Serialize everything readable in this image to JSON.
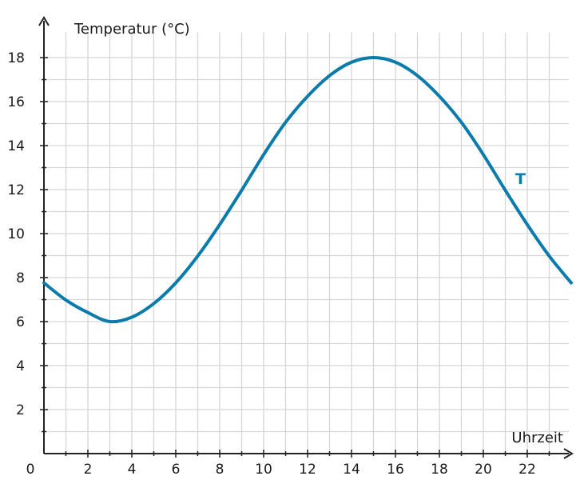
{
  "chart_data": {
    "type": "line",
    "title": "",
    "xlabel": "Uhrzeit",
    "ylabel": "Temperatur (°C)",
    "origin_label": "0",
    "xlim": [
      0,
      24
    ],
    "ylim": [
      0,
      19
    ],
    "x_ticks": [
      2,
      4,
      6,
      8,
      10,
      12,
      14,
      16,
      18,
      20,
      22
    ],
    "y_ticks": [
      2,
      4,
      6,
      8,
      10,
      12,
      14,
      16,
      18
    ],
    "grid": true,
    "series": [
      {
        "name": "T",
        "color": "#0a7bab",
        "x": [
          0,
          1,
          2,
          3,
          4,
          5,
          6,
          7,
          8,
          9,
          10,
          11,
          12,
          13,
          14,
          15,
          16,
          17,
          18,
          19,
          20,
          21,
          22,
          23,
          24
        ],
        "y": [
          7.76,
          6.98,
          6.41,
          6.0,
          6.2,
          6.82,
          7.76,
          8.98,
          10.41,
          11.97,
          13.59,
          15.06,
          16.24,
          17.18,
          17.79,
          18.0,
          17.79,
          17.18,
          16.24,
          15.06,
          13.59,
          11.97,
          10.41,
          8.98,
          7.76
        ]
      }
    ]
  }
}
